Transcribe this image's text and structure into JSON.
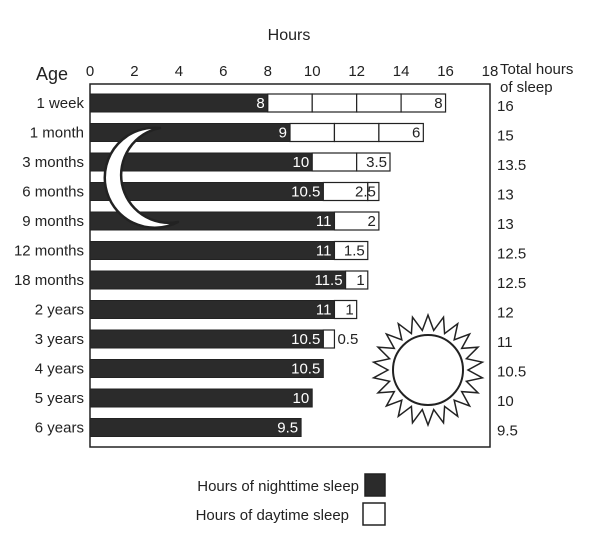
{
  "chart_data": {
    "type": "bar",
    "stacked": true,
    "orientation": "horizontal",
    "title": "Hours",
    "ylabel": "Age",
    "total_header": [
      "Total hours",
      "of sleep"
    ],
    "xlim": [
      0,
      18
    ],
    "x_ticks": [
      0,
      2,
      4,
      6,
      8,
      10,
      12,
      14,
      16,
      18
    ],
    "categories": [
      "1 week",
      "1 month",
      "3 months",
      "6 months",
      "9 months",
      "12 months",
      "18 months",
      "2 years",
      "3 years",
      "4 years",
      "5 years",
      "6 years"
    ],
    "series": [
      {
        "name": "Hours of nighttime sleep",
        "color": "#2b2b2b",
        "values": [
          8,
          9,
          10,
          10.5,
          11,
          11,
          11.5,
          11,
          10.5,
          10.5,
          10,
          9.5
        ]
      },
      {
        "name": "Hours of daytime sleep",
        "color": "#ffffff",
        "values": [
          8,
          6,
          3.5,
          2.5,
          2,
          1.5,
          1,
          1,
          0.5,
          0,
          0,
          0
        ]
      }
    ],
    "night_labels": [
      "8",
      "9",
      "10",
      "10.5",
      "11",
      "11",
      "11.5",
      "11",
      "10.5",
      "10.5",
      "10",
      "9.5"
    ],
    "day_labels": [
      "8",
      "6",
      "3.5",
      "2.5",
      "2",
      "1.5",
      "1",
      "1",
      "0.5",
      "",
      "",
      ""
    ],
    "totals": [
      "16",
      "15",
      "13.5",
      "13",
      "13",
      "12.5",
      "12.5",
      "12",
      "11",
      "10.5",
      "10",
      "9.5"
    ],
    "legend": {
      "position": "bottom-center"
    },
    "grid": false
  }
}
